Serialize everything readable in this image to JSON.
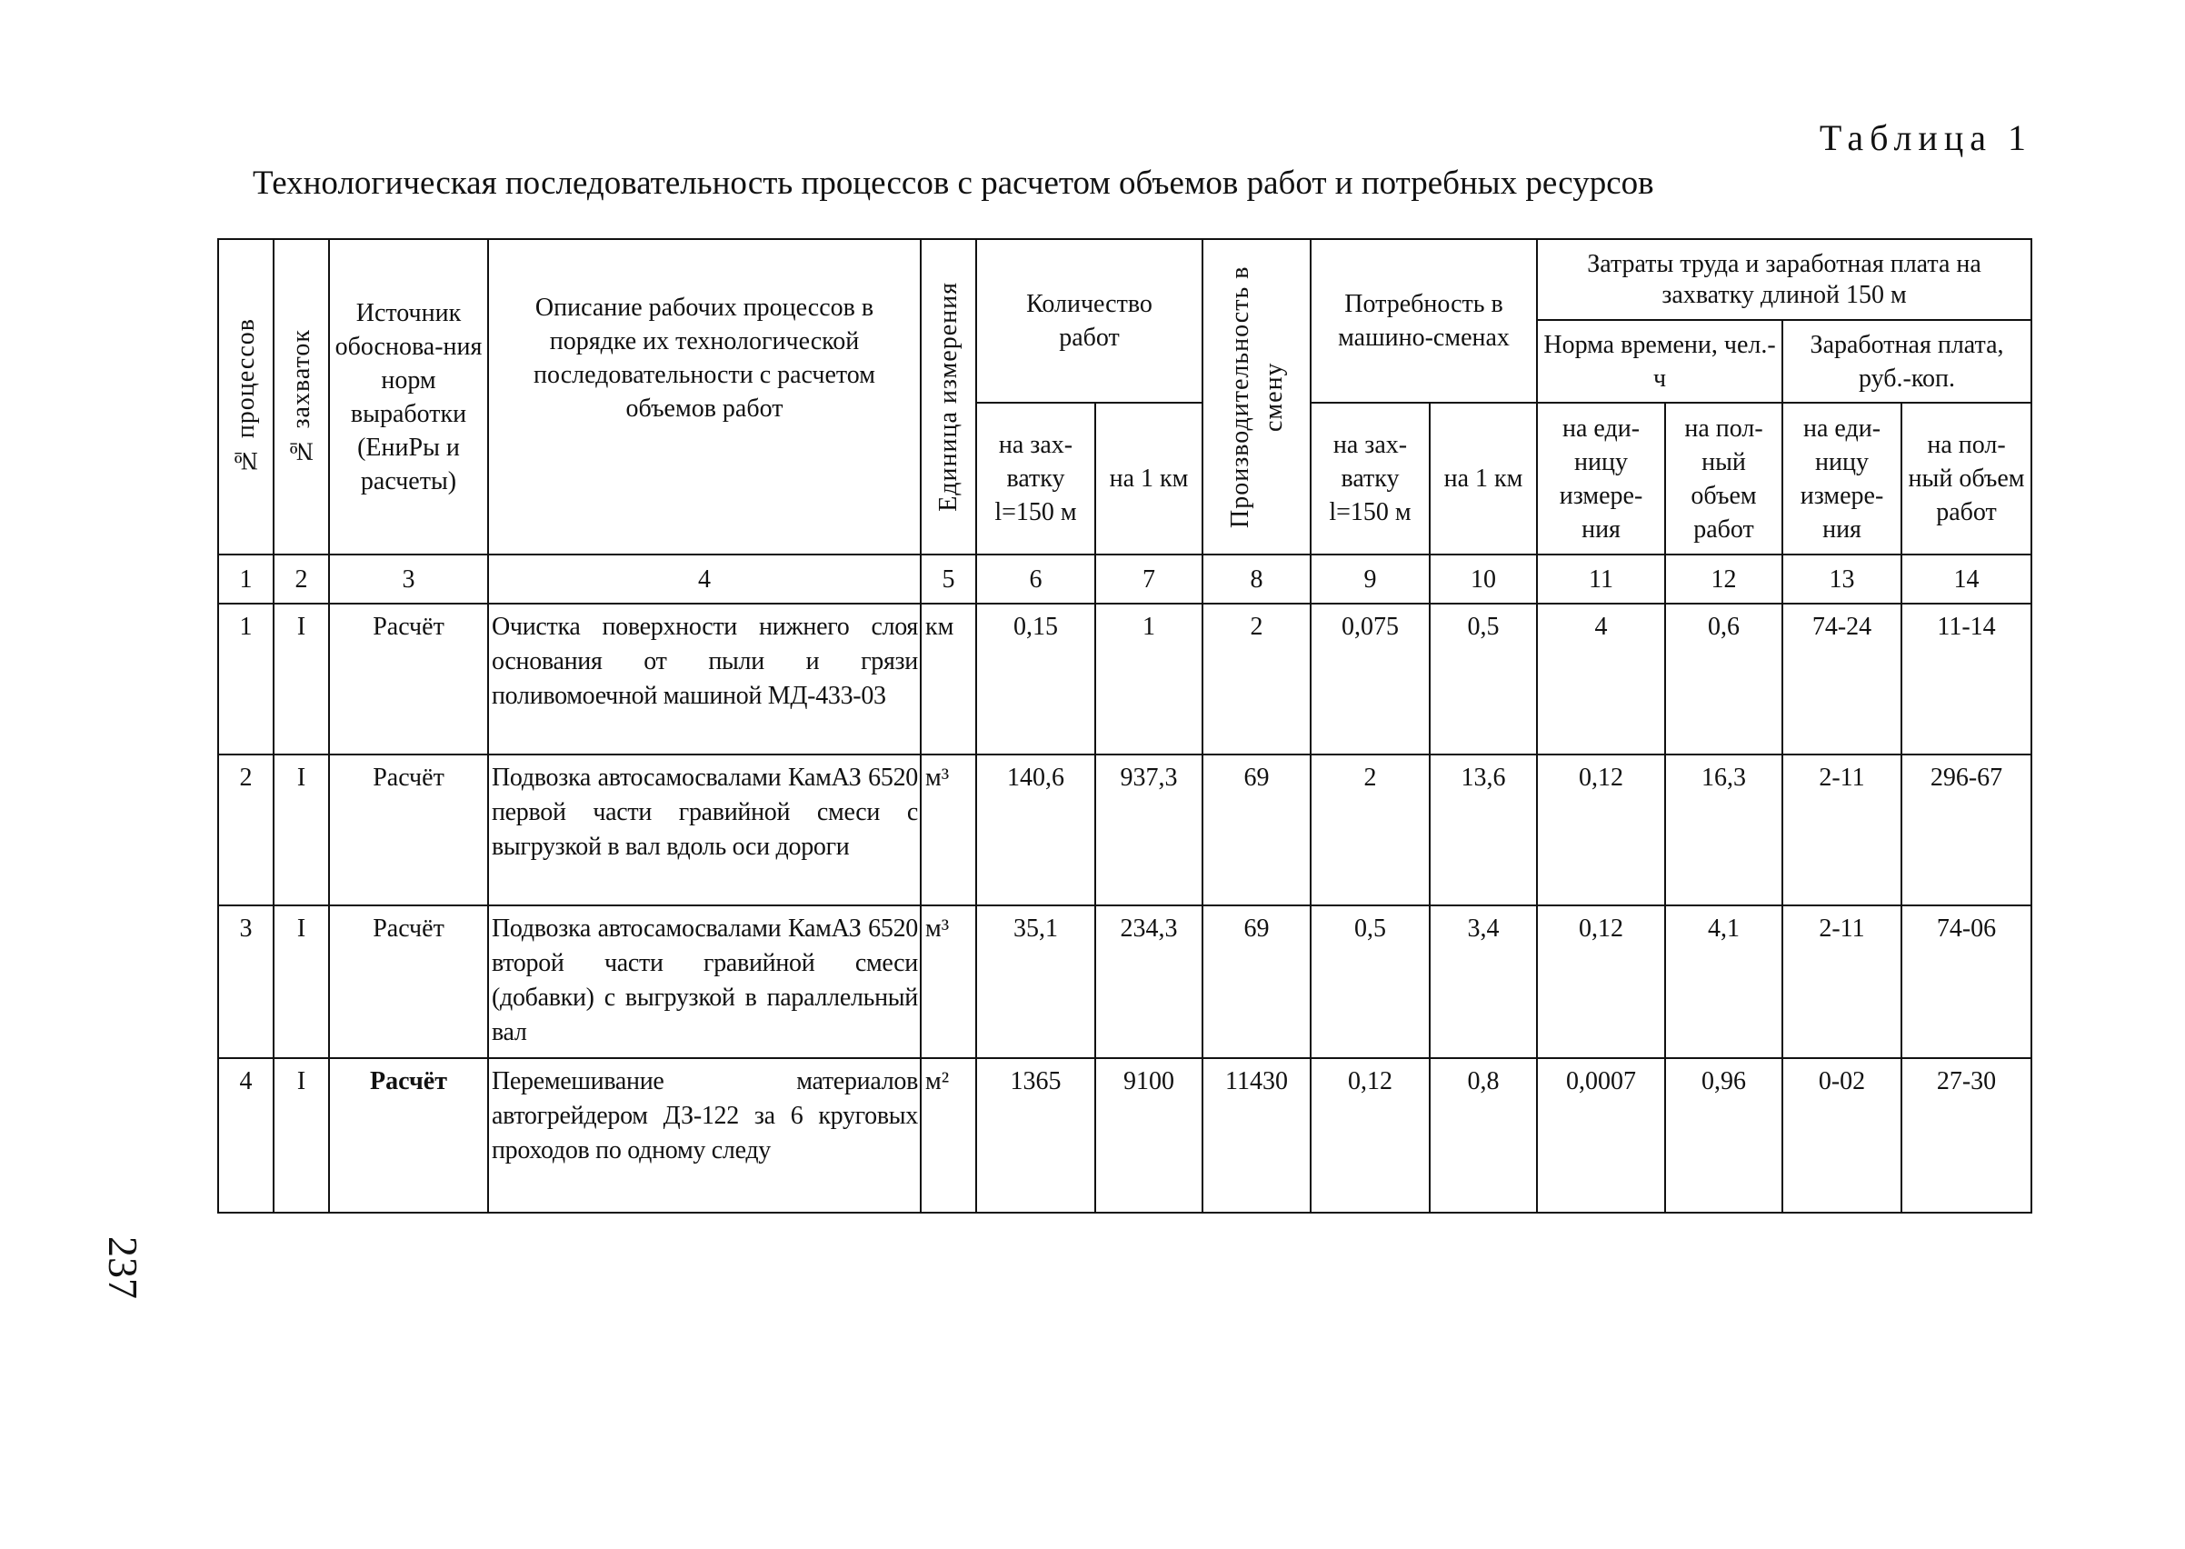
{
  "table_label": "Таблица 1",
  "title": "Технологическая последовательность процессов с расчетом объемов работ и потребных ресурсов",
  "headers": {
    "col1": "№ процессов",
    "col2": "№ захваток",
    "col3": "Источник обоснова-ния норм выработки (ЕниРы и расчеты)",
    "col4": "Описание рабочих процессов в порядке их технологической последовательности с расчетом объемов работ",
    "col5": "Единица измерения",
    "quantity": "Количество работ",
    "quantity_per_grip": "на зах-ватку l=150 м",
    "quantity_per_km": "на 1 км",
    "productivity": "Производительность в смену",
    "machine_shifts": "Потребность в машино-сменах",
    "machine_per_grip": "на зах-ватку l=150 м",
    "machine_per_km": "на 1 км",
    "labor": "Затраты труда и заработная плата на захватку длиной 150 м",
    "time_norm": "Норма времени, чел.-ч",
    "wage": "Заработная плата, руб.-коп.",
    "time_per_unit": "на еди-ницу измере-ния",
    "time_total": "на пол-ный объем работ",
    "wage_per_unit": "на еди-ницу измере-ния",
    "wage_total": "на пол-ный объем работ"
  },
  "column_numbers": [
    "1",
    "2",
    "3",
    "4",
    "5",
    "6",
    "7",
    "8",
    "9",
    "10",
    "11",
    "12",
    "13",
    "14"
  ],
  "rows": [
    [
      "1",
      "I",
      "Расчёт",
      "Очистка поверхности нижнего слоя основания от пыли и грязи поливомоечной машиной МД-433-03",
      "км",
      "0,15",
      "1",
      "2",
      "0,075",
      "0,5",
      "4",
      "0,6",
      "74-24",
      "11-14"
    ],
    [
      "2",
      "I",
      "Расчёт",
      "Подвозка автосамосвалами КамАЗ 6520 первой части гравийной смеси с выгрузкой в вал вдоль оси дороги",
      "м³",
      "140,6",
      "937,3",
      "69",
      "2",
      "13,6",
      "0,12",
      "16,3",
      "2-11",
      "296-67"
    ],
    [
      "3",
      "I",
      "Расчёт",
      "Подвозка автосамосвалами КамАЗ 6520 второй части гравийной смеси (добавки) с выгрузкой в параллельный вал",
      "м³",
      "35,1",
      "234,3",
      "69",
      "0,5",
      "3,4",
      "0,12",
      "4,1",
      "2-11",
      "74-06"
    ],
    [
      "4",
      "I",
      "Расчёт",
      "Перемешивание материалов автогрейдером ДЗ-122 за 6 круговых проходов по одному следу",
      "м²",
      "1365",
      "9100",
      "11430",
      "0,12",
      "0,8",
      "0,0007",
      "0,96",
      "0-02",
      "27-30"
    ]
  ],
  "page_number": "237"
}
